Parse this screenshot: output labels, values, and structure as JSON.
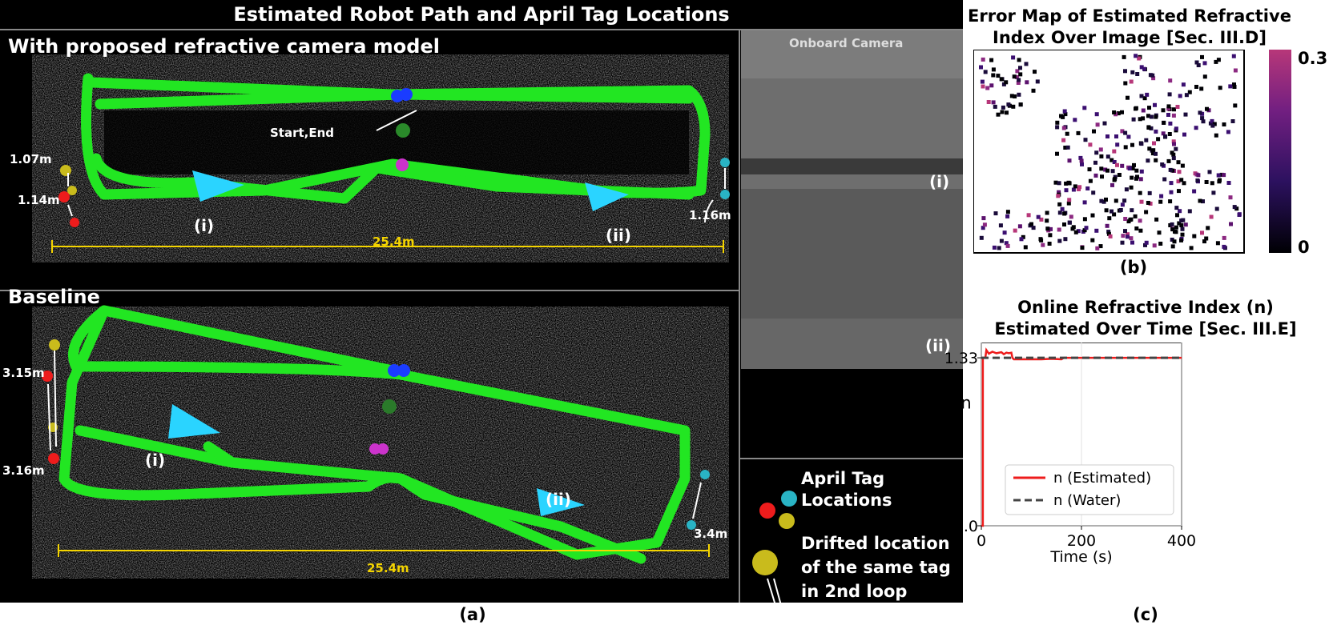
{
  "panel_a": {
    "title": "Estimated Robot Path and April Tag Locations",
    "top": {
      "label": "With proposed refractive camera model",
      "start_end": "Start,End",
      "dist_left_upper": "1.07m",
      "dist_left_lower": "1.14m",
      "dist_right": "1.16m",
      "marker_i": "(i)",
      "marker_ii": "(ii)",
      "scale": "25.4m"
    },
    "bottom": {
      "label": "Baseline",
      "dist_left_upper": "3.15m",
      "dist_left_lower": "3.16m",
      "dist_right": "3.4m",
      "marker_i": "(i)",
      "marker_ii": "(ii)",
      "scale": "25.4m"
    },
    "camera": {
      "title": "Onboard Camera",
      "img_i": "(i)",
      "img_ii": "(ii)"
    },
    "legend": {
      "tag_line1": "April Tag",
      "tag_line2": "Locations",
      "drift_line1": "Drifted location",
      "drift_line2": "of the same tag",
      "drift_line3": "in 2nd loop"
    },
    "caption": "(a)",
    "colors": {
      "path": "#22e622",
      "arrow": "#2ad4ff",
      "tag_red": "#ee1c1c",
      "tag_yellow": "#c9bb1c",
      "tag_cyan": "#29b3c4",
      "scale": "#f4d400"
    }
  },
  "panel_b": {
    "title_line1": "Error Map of Estimated Refractive",
    "title_line2": "Index Over Image [Sec. III.D]",
    "colorbar_max": "0.3",
    "colorbar_min": "0",
    "caption": "(b)"
  },
  "panel_c": {
    "title_line1": "Online Refractive Index (n)",
    "title_line2": "Estimated Over Time [Sec. III.E]",
    "caption": "(c)"
  },
  "chart_data": [
    {
      "type": "heatmap",
      "title": "Error Map of Estimated Refractive Index Over Image [Sec. III.D]",
      "colorbar_range": [
        0,
        0.3
      ],
      "colorbar_ticks": [
        "0",
        "0.3"
      ],
      "colormap": "magma"
    },
    {
      "type": "line",
      "title": "Online Refractive Index (n) Estimated Over Time [Sec. III.E]",
      "xlabel": "Time (s)",
      "ylabel": "n",
      "xlim": [
        0,
        400
      ],
      "ylim": [
        1.0,
        1.36
      ],
      "xticks": [
        0,
        200,
        400
      ],
      "yticks": [
        1.0,
        1.33
      ],
      "grid": true,
      "legend_position": "bottom-center",
      "series": [
        {
          "name": "n (Estimated)",
          "color": "#ee1c1c",
          "style": "solid",
          "x": [
            0,
            3,
            3,
            8,
            10,
            15,
            22,
            30,
            40,
            45,
            50,
            55,
            60,
            62,
            65,
            80,
            100,
            120,
            140,
            160,
            165,
            170,
            200,
            250,
            300,
            350,
            400
          ],
          "y": [
            1.0,
            1.0,
            1.33,
            1.33,
            1.345,
            1.338,
            1.342,
            1.339,
            1.341,
            1.337,
            1.34,
            1.339,
            1.34,
            1.33,
            1.327,
            1.327,
            1.327,
            1.327,
            1.328,
            1.327,
            1.33,
            1.33,
            1.33,
            1.33,
            1.33,
            1.33,
            1.33
          ]
        },
        {
          "name": "n (Water)",
          "color": "#444444",
          "style": "dashed",
          "x": [
            0,
            400
          ],
          "y": [
            1.33,
            1.33
          ]
        }
      ]
    }
  ]
}
